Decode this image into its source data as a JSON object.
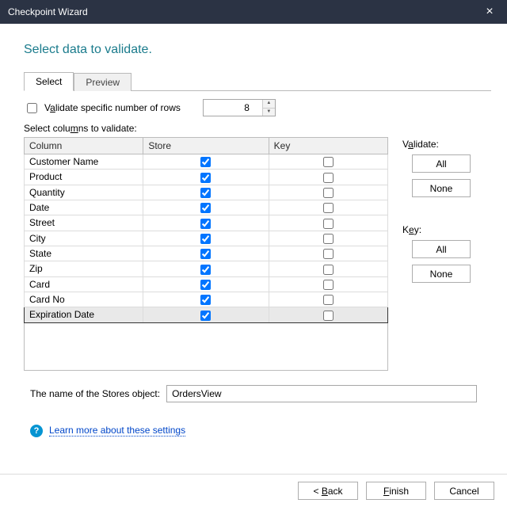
{
  "window": {
    "title": "Checkpoint Wizard",
    "close_glyph": "×"
  },
  "heading": "Select data to validate.",
  "tabs": {
    "select": "Select",
    "preview": "Preview"
  },
  "rows_check": {
    "label_pre": "V",
    "label_u": "a",
    "label_post": "lidate specific number of rows",
    "value": "8",
    "checked": false
  },
  "columns_label_pre": "Select colu",
  "columns_label_u": "m",
  "columns_label_post": "ns to validate:",
  "grid": {
    "headers": {
      "column": "Column",
      "store": "Store",
      "key": "Key"
    },
    "col_widths": {
      "column": 150,
      "store": 158,
      "key": 150
    },
    "rows": [
      {
        "name": "Customer Name",
        "store": true,
        "key": false,
        "selected": false
      },
      {
        "name": "Product",
        "store": true,
        "key": false,
        "selected": false
      },
      {
        "name": "Quantity",
        "store": true,
        "key": false,
        "selected": false
      },
      {
        "name": "Date",
        "store": true,
        "key": false,
        "selected": false
      },
      {
        "name": "Street",
        "store": true,
        "key": false,
        "selected": false
      },
      {
        "name": "City",
        "store": true,
        "key": false,
        "selected": false
      },
      {
        "name": "State",
        "store": true,
        "key": false,
        "selected": false
      },
      {
        "name": "Zip",
        "store": true,
        "key": false,
        "selected": false
      },
      {
        "name": "Card",
        "store": true,
        "key": false,
        "selected": false
      },
      {
        "name": "Card No",
        "store": true,
        "key": false,
        "selected": false
      },
      {
        "name": "Expiration Date",
        "store": true,
        "key": false,
        "selected": true
      }
    ]
  },
  "side": {
    "validate_pre": "V",
    "validate_u": "a",
    "validate_post": "lidate:",
    "key_pre": "K",
    "key_u": "e",
    "key_post": "y:",
    "all": "All",
    "none": "None"
  },
  "stores": {
    "label": "The name of the Stores object:",
    "value": "OrdersView"
  },
  "help": {
    "icon": "?",
    "text": "Learn more about these settings"
  },
  "footer": {
    "back_pre": "< ",
    "back_u": "B",
    "back_post": "ack",
    "finish_pre": "",
    "finish_u": "F",
    "finish_post": "inish",
    "cancel": "Cancel"
  },
  "colors": {
    "titlebar_bg": "#2b3344",
    "heading_color": "#1a7b8c",
    "border_gray": "#b9b9b9",
    "grid_border": "#dcdcdc",
    "selected_row_bg": "#e9e9e9",
    "link_color": "#0046c9",
    "help_icon_bg": "#0594d2"
  }
}
